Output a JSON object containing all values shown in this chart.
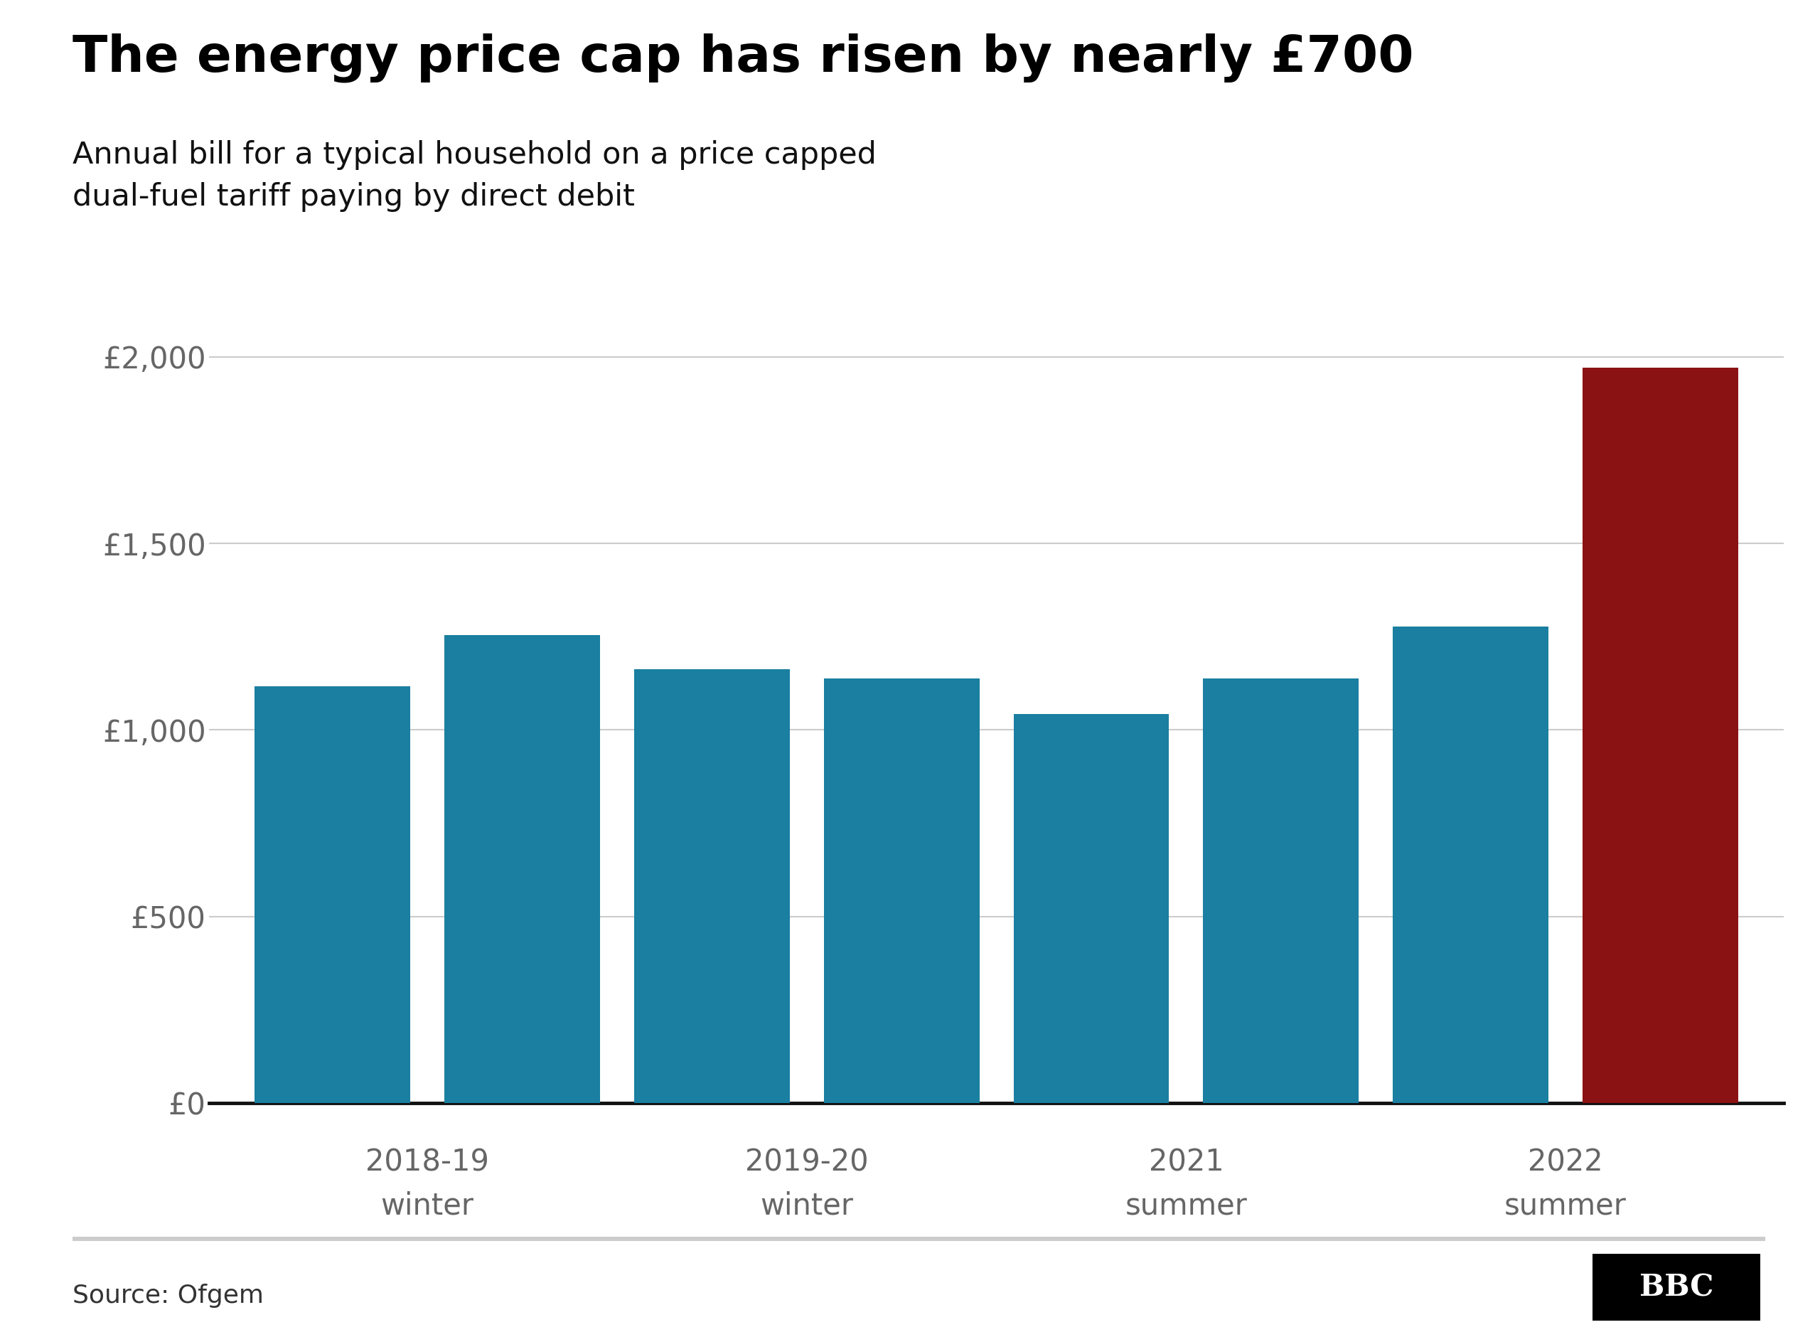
{
  "title": "The energy price cap has risen by nearly £700",
  "subtitle": "Annual bill for a typical household on a price capped\ndual-fuel tariff paying by direct debit",
  "source": "Source: Ofgem",
  "bars": [
    {
      "value": 1117,
      "color": "#1a7fa0"
    },
    {
      "value": 1254,
      "color": "#1a7fa0"
    },
    {
      "value": 1162,
      "color": "#1a7fa0"
    },
    {
      "value": 1138,
      "color": "#1a7fa0"
    },
    {
      "value": 1042,
      "color": "#1a7fa0"
    },
    {
      "value": 1138,
      "color": "#1a7fa0"
    },
    {
      "value": 1277,
      "color": "#1a7fa0"
    },
    {
      "value": 1971,
      "color": "#8b1212"
    }
  ],
  "group_centers": [
    0.5,
    2.5,
    4.5,
    6.5
  ],
  "group_years": [
    "2018-19",
    "2019-20",
    "2021",
    "2022"
  ],
  "group_seasons": [
    "winter",
    "winter",
    "summer",
    "summer"
  ],
  "yticks": [
    0,
    500,
    1000,
    1500,
    2000
  ],
  "ytick_labels": [
    "£0",
    "£500",
    "£1,000",
    "£1,500",
    "£2,000"
  ],
  "ylim": [
    0,
    2150
  ],
  "bar_width": 0.82,
  "background_color": "#ffffff",
  "title_fontsize": 52,
  "subtitle_fontsize": 31,
  "source_fontsize": 26,
  "ytick_fontsize": 30,
  "xtick_fontsize": 30,
  "axis_label_color": "#666666",
  "grid_color": "#cccccc",
  "spine_color": "#111111"
}
